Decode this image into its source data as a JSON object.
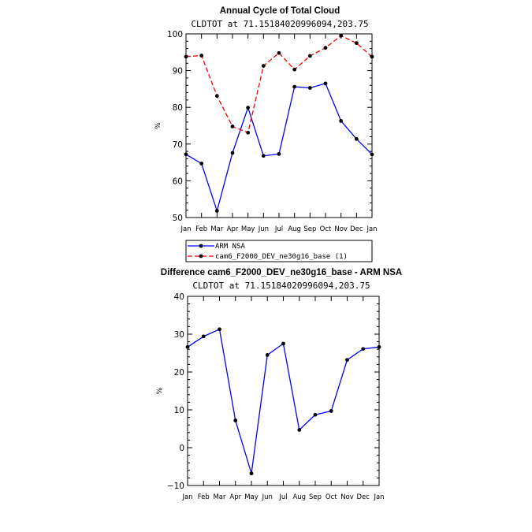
{
  "chart_data": [
    {
      "type": "line",
      "title": "Annual Cycle of Total Cloud",
      "subtitle": "CLDTOT at 71.15184020996094,203.75",
      "ylabel": "%",
      "xlabel": "",
      "categories": [
        "Jan",
        "Feb",
        "Mar",
        "Apr",
        "May",
        "Jun",
        "Jul",
        "Aug",
        "Sep",
        "Oct",
        "Nov",
        "Dec",
        "Jan"
      ],
      "ylim": [
        50,
        100
      ],
      "yticks": [
        50,
        60,
        70,
        80,
        90,
        100
      ],
      "grid": false,
      "legend_position": "bottom",
      "series": [
        {
          "name": "ARM NSA",
          "color": "#0000ff",
          "dash": "solid",
          "values": [
            67.2,
            64.7,
            51.8,
            67.6,
            79.9,
            66.8,
            67.3,
            85.6,
            85.3,
            86.5,
            76.3,
            71.4,
            67.2
          ]
        },
        {
          "name": "cam6_F2000_DEV_ne30g16_base (1)",
          "color": "#ff0000",
          "dash": "dashed",
          "values": [
            93.8,
            94.1,
            83.1,
            74.8,
            73.1,
            91.3,
            94.8,
            90.3,
            94.0,
            96.2,
            99.5,
            97.5,
            93.8
          ]
        }
      ]
    },
    {
      "type": "line",
      "title": "Difference cam6_F2000_DEV_ne30g16_base - ARM NSA",
      "subtitle": "CLDTOT at 71.15184020996094,203.75",
      "ylabel": "%",
      "xlabel": "",
      "categories": [
        "Jan",
        "Feb",
        "Mar",
        "Apr",
        "May",
        "Jun",
        "Jul",
        "Aug",
        "Sep",
        "Oct",
        "Nov",
        "Dec",
        "Jan"
      ],
      "ylim": [
        -10,
        40
      ],
      "yticks": [
        -10,
        0,
        10,
        20,
        30,
        40
      ],
      "grid": false,
      "series": [
        {
          "color": "#0000ff",
          "dash": "solid",
          "values": [
            26.6,
            29.4,
            31.3,
            7.2,
            -6.8,
            24.5,
            27.5,
            4.7,
            8.7,
            9.7,
            23.2,
            26.1,
            26.6
          ]
        }
      ]
    }
  ]
}
